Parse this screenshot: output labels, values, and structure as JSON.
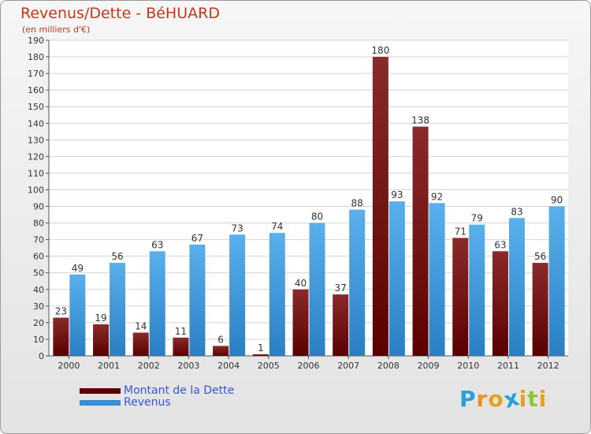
{
  "title": "Revenus/Dette - BéHUARD",
  "subtitle": "(en milliers d'€)",
  "colors": {
    "dette_top": "#8a2a2a",
    "dette_bottom": "#5a0000",
    "revenus_top": "#5ab0ec",
    "revenus_bottom": "#2a7fc4",
    "legend_dette": "#5a0000",
    "legend_revenus": "#3a8fd6"
  },
  "legend": {
    "dette_label": "Montant de la Dette",
    "revenus_label": "Revenus"
  },
  "logo": {
    "letters": [
      "P",
      "r",
      "o",
      "x",
      "i",
      "t",
      "i"
    ],
    "colors": [
      "#2aa0d8",
      "#e89420",
      "#e8a020",
      "#2aa0d8",
      "#e8a020",
      "#8cc63e",
      "#e8a020"
    ]
  },
  "chart_data": {
    "type": "bar",
    "title": "Revenus/Dette - BéHUARD",
    "ylabel": "(en milliers d'€)",
    "xlabel": "",
    "ylim": [
      0,
      190
    ],
    "ytick_step": 10,
    "grid": true,
    "legend_position": "bottom-left",
    "categories": [
      "2000",
      "2001",
      "2002",
      "2003",
      "2004",
      "2005",
      "2006",
      "2007",
      "2008",
      "2009",
      "2010",
      "2011",
      "2012"
    ],
    "series": [
      {
        "name": "Montant de la Dette",
        "values": [
          23,
          19,
          14,
          11,
          6,
          1,
          40,
          37,
          180,
          138,
          71,
          63,
          56
        ]
      },
      {
        "name": "Revenus",
        "values": [
          49,
          56,
          63,
          67,
          73,
          74,
          80,
          88,
          93,
          92,
          79,
          83,
          90
        ]
      }
    ]
  }
}
